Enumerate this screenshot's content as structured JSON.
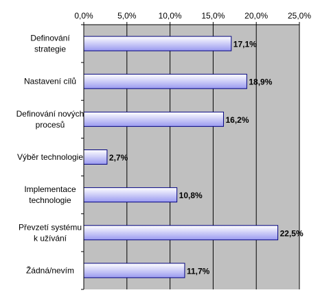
{
  "chart_data": {
    "type": "bar",
    "orientation": "horizontal",
    "categories": [
      [
        "Definování",
        "strategie"
      ],
      [
        "Nastavení cílů"
      ],
      [
        "Definování nových",
        "procesů"
      ],
      [
        "Výběr technologie"
      ],
      [
        "Implementace",
        "technologie"
      ],
      [
        "Převzetí systému",
        "k užívání"
      ],
      [
        "Žádná/nevím"
      ]
    ],
    "values": [
      17.1,
      18.9,
      16.2,
      2.7,
      10.8,
      22.5,
      11.7
    ],
    "value_labels": [
      "17,1%",
      "18,9%",
      "16,2%",
      "2,7%",
      "10,8%",
      "22,5%",
      "11,7%"
    ],
    "xlim": [
      0,
      25
    ],
    "xticks": [
      0,
      5,
      10,
      15,
      20,
      25
    ],
    "xtick_labels": [
      "0,0%",
      "5,0%",
      "10,0%",
      "15,0%",
      "20,0%",
      "25,0%"
    ],
    "x_axis_position": "top",
    "grid": true,
    "legend": "none",
    "colors": {
      "plot_background": "#c0c0c0",
      "bar_fill_start": "#ffffff",
      "bar_fill_end": "#9a9af0",
      "bar_border": "#000080",
      "gridline": "#000000"
    }
  }
}
